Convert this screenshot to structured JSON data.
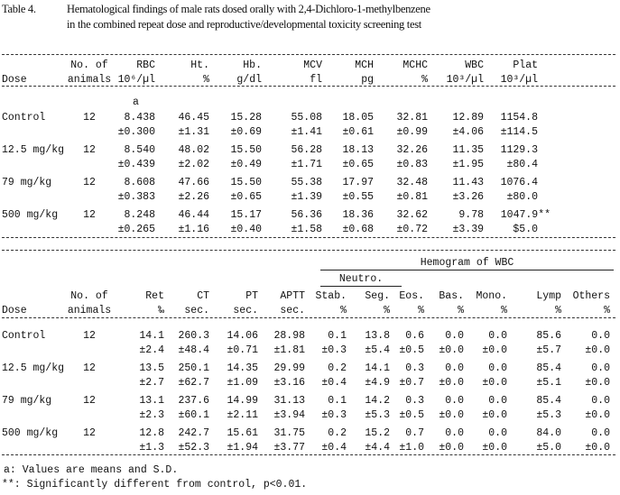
{
  "title": {
    "label": "Table 4.",
    "line1": "Hematological findings of male rats dosed orally with 2,4-Dichloro-1-methylbenzene",
    "line2": "in the combined repeat dose and reproductive/developmental toxicity screening test"
  },
  "table1": {
    "headers": [
      {
        "top": "",
        "bottom": "Dose"
      },
      {
        "top": "No. of",
        "bottom": "animals"
      },
      {
        "top": "RBC",
        "bottom": "10⁶/µl"
      },
      {
        "top": "Ht.",
        "bottom": "%"
      },
      {
        "top": "Hb.",
        "bottom": "g/dl"
      },
      {
        "top": "MCV",
        "bottom": "fl"
      },
      {
        "top": "MCH",
        "bottom": "pg"
      },
      {
        "top": "MCHC",
        "bottom": "%"
      },
      {
        "top": "WBC",
        "bottom": "10³/µl"
      },
      {
        "top": "Plat",
        "bottom": "10³/µl"
      }
    ],
    "footnote_marker": "a",
    "rows": [
      {
        "dose": "Control",
        "n": "12",
        "mean": [
          "8.438",
          "46.45",
          "15.28",
          "55.08",
          "18.05",
          "32.81",
          "12.89",
          "1154.8"
        ],
        "sd": [
          "±0.300",
          "±1.31",
          "±0.69",
          "±1.41",
          "±0.61",
          "±0.99",
          "±4.06",
          "±114.5"
        ]
      },
      {
        "dose": "12.5 mg/kg",
        "n": "12",
        "mean": [
          "8.540",
          "48.02",
          "15.50",
          "56.28",
          "18.13",
          "32.26",
          "11.35",
          "1129.3"
        ],
        "sd": [
          "±0.439",
          "±2.02",
          "±0.49",
          "±1.71",
          "±0.65",
          "±0.83",
          "±1.95",
          "±80.4"
        ]
      },
      {
        "dose": "79 mg/kg",
        "n": "12",
        "mean": [
          "8.608",
          "47.66",
          "15.50",
          "55.38",
          "17.97",
          "32.48",
          "11.43",
          "1076.4"
        ],
        "sd": [
          "±0.383",
          "±2.26",
          "±0.65",
          "±1.39",
          "±0.55",
          "±0.81",
          "±3.26",
          "±80.0"
        ]
      },
      {
        "dose": "500 mg/kg",
        "n": "12",
        "mean": [
          "8.248",
          "46.44",
          "15.17",
          "56.36",
          "18.36",
          "32.62",
          "9.78",
          "1047.9**"
        ],
        "sd": [
          "±0.265",
          "±1.16",
          "±0.40",
          "±1.58",
          "±0.68",
          "±0.72",
          "±3.39",
          "$5.0"
        ]
      }
    ]
  },
  "table2": {
    "group_header": "Hemogram of WBC",
    "subgroup_header": "Neutro.",
    "headers": [
      {
        "top": "",
        "bottom": "Dose"
      },
      {
        "top": "No. of",
        "bottom": "animals"
      },
      {
        "top": "Ret",
        "bottom": "‰"
      },
      {
        "top": "CT",
        "bottom": "sec."
      },
      {
        "top": "PT",
        "bottom": "sec."
      },
      {
        "top": "APTT",
        "bottom": "sec."
      },
      {
        "top": "Stab.",
        "bottom": "%"
      },
      {
        "top": "Seg.",
        "bottom": "%"
      },
      {
        "top": "Eos.",
        "bottom": "%"
      },
      {
        "top": "Bas.",
        "bottom": "%"
      },
      {
        "top": "Mono.",
        "bottom": "%"
      },
      {
        "top": "Lymp",
        "bottom": "%"
      },
      {
        "top": "Others",
        "bottom": "%"
      }
    ],
    "rows": [
      {
        "dose": "Control",
        "n": "12",
        "mean": [
          "14.1",
          "260.3",
          "14.06",
          "28.98",
          "0.1",
          "13.8",
          "0.6",
          "0.0",
          "0.0",
          "85.6",
          "0.0"
        ],
        "sd": [
          "±2.4",
          "±48.4",
          "±0.71",
          "±1.81",
          "±0.3",
          "±5.4",
          "±0.5",
          "±0.0",
          "±0.0",
          "±5.7",
          "±0.0"
        ]
      },
      {
        "dose": "12.5 mg/kg",
        "n": "12",
        "mean": [
          "13.5",
          "250.1",
          "14.35",
          "29.99",
          "0.2",
          "14.1",
          "0.3",
          "0.0",
          "0.0",
          "85.4",
          "0.0"
        ],
        "sd": [
          "±2.7",
          "±62.7",
          "±1.09",
          "±3.16",
          "±0.4",
          "±4.9",
          "±0.7",
          "±0.0",
          "±0.0",
          "±5.1",
          "±0.0"
        ]
      },
      {
        "dose": "79 mg/kg",
        "n": "12",
        "mean": [
          "13.1",
          "237.6",
          "14.99",
          "31.13",
          "0.1",
          "14.2",
          "0.3",
          "0.0",
          "0.0",
          "85.4",
          "0.0"
        ],
        "sd": [
          "±2.3",
          "±60.1",
          "±2.11",
          "±3.94",
          "±0.3",
          "±5.3",
          "±0.5",
          "±0.0",
          "±0.0",
          "±5.3",
          "±0.0"
        ]
      },
      {
        "dose": "500 mg/kg",
        "n": "12",
        "mean": [
          "12.8",
          "242.7",
          "15.61",
          "31.75",
          "0.2",
          "15.2",
          "0.7",
          "0.0",
          "0.0",
          "84.0",
          "0.0"
        ],
        "sd": [
          "±1.3",
          "±52.3",
          "±1.94",
          "±3.77",
          "±0.4",
          "±4.4",
          "±1.0",
          "±0.0",
          "±0.0",
          "±5.0",
          "±0.0"
        ]
      }
    ]
  },
  "footnotes": [
    "a: Values are means and S.D.",
    "**: Significantly different from control, p<0.01."
  ]
}
